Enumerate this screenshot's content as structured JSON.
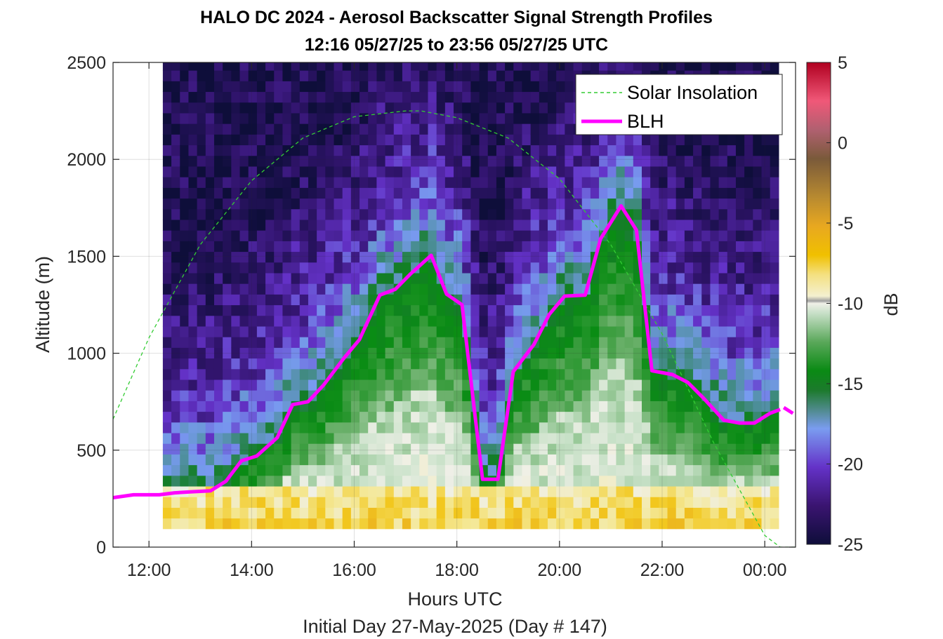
{
  "chart_data": {
    "type": "heatmap",
    "title": "HALO DC 2024 - Aerosol Backscatter Signal Strength Profiles",
    "subtitle": "12:16 05/27/25 to 23:56 05/27/25  UTC",
    "xlabel": "Hours UTC",
    "ylabel": "Altitude (m)",
    "footer": "Initial Day 27-May-2025 (Day # 147)",
    "colorbar_label": "dB",
    "xlim": [
      11.3,
      24.6
    ],
    "ylim": [
      0,
      2500
    ],
    "clim": [
      -25,
      5
    ],
    "colorbar_ticks": [
      5,
      0,
      -5,
      -10,
      -15,
      -20,
      -25
    ],
    "colorbar_tick_labels": [
      "5",
      "0",
      "-5",
      "-10",
      "-15",
      "-20",
      "-25"
    ],
    "x_ticks": [
      12,
      14,
      16,
      18,
      20,
      22,
      24
    ],
    "x_tick_labels": [
      "12:00",
      "14:00",
      "16:00",
      "18:00",
      "20:00",
      "22:00",
      "00:00"
    ],
    "y_ticks": [
      0,
      500,
      1000,
      1500,
      2000,
      2500
    ],
    "y_tick_labels": [
      "0",
      "500",
      "1000",
      "1500",
      "2000",
      "2500"
    ],
    "grid": true,
    "legend_position": "top-right",
    "series": [
      {
        "name": "Solar Insolation",
        "style": "dashed",
        "color": "#33cc33",
        "x": [
          11.3,
          12.0,
          13.0,
          14.0,
          15.0,
          16.0,
          17.0,
          17.3,
          18.0,
          19.0,
          20.0,
          21.0,
          22.0,
          23.0,
          24.0,
          24.3,
          24.6
        ],
        "y": [
          660,
          1080,
          1560,
          1890,
          2110,
          2220,
          2250,
          2250,
          2215,
          2110,
          1900,
          1560,
          1100,
          540,
          60,
          0,
          0
        ]
      },
      {
        "name": "BLH",
        "style": "solid",
        "color": "#ff00ff",
        "x": [
          11.3,
          11.7,
          12.2,
          12.5,
          12.8,
          13.2,
          13.5,
          13.8,
          14.1,
          14.5,
          14.8,
          15.1,
          15.4,
          15.8,
          16.1,
          16.5,
          16.8,
          17.1,
          17.5,
          17.8,
          18.1,
          18.5,
          18.8,
          19.1,
          19.5,
          19.8,
          20.1,
          20.5,
          20.8,
          21.2,
          21.5,
          21.8,
          22.2,
          22.5,
          22.8,
          23.2,
          23.5,
          23.8,
          24.1,
          24.3
        ],
        "y": [
          255,
          270,
          270,
          280,
          285,
          290,
          340,
          445,
          470,
          565,
          735,
          750,
          835,
          975,
          1070,
          1300,
          1330,
          1410,
          1505,
          1305,
          1250,
          350,
          350,
          905,
          1045,
          1200,
          1295,
          1300,
          1590,
          1760,
          1635,
          910,
          890,
          850,
          770,
          655,
          640,
          640,
          690,
          710
        ]
      }
    ]
  }
}
